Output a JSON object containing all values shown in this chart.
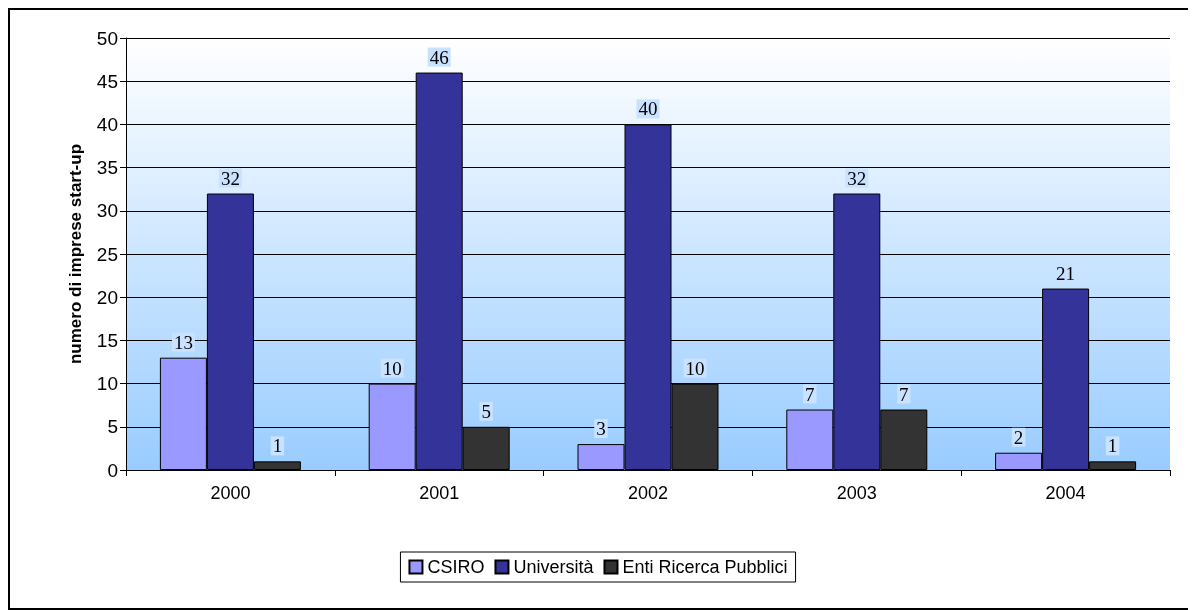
{
  "chart_data": {
    "type": "bar",
    "ylabel": "numero di imprese start-up",
    "categories": [
      "2000",
      "2001",
      "2002",
      "2003",
      "2004"
    ],
    "series": [
      {
        "name": "CSIRO",
        "color": "#9999ff",
        "values": [
          13,
          10,
          3,
          7,
          2
        ]
      },
      {
        "name": "Università",
        "color": "#333399",
        "values": [
          32,
          46,
          40,
          32,
          21
        ]
      },
      {
        "name": "Enti Ricerca Pubblici",
        "color": "#333333",
        "values": [
          1,
          5,
          10,
          7,
          1
        ]
      }
    ],
    "ylim": [
      0,
      50
    ],
    "yticks": [
      0,
      5,
      10,
      15,
      20,
      25,
      30,
      35,
      40,
      45,
      50
    ],
    "grid": "y",
    "legend": "bottom",
    "data_labels": true
  }
}
